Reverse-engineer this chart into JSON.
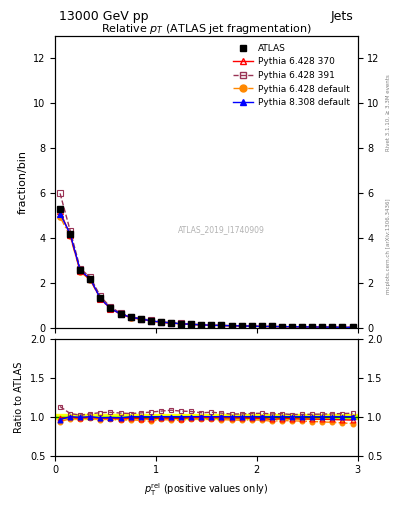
{
  "title_top": "13000 GeV pp",
  "title_top_right": "Jets",
  "plot_title": "Relative $p_{T}$ (ATLAS jet fragmentation)",
  "ylabel_main": "fraction/bin",
  "ylabel_ratio": "Ratio to ATLAS",
  "xlabel": "$p_{\\mathrm{T}}^{\\mathrm{rel}}$ (positive values only)",
  "right_label": "Rivet 3.1.10, ≥ 3.3M events",
  "right_label2": "mcplots.cern.ch [arXiv:1306.3436]",
  "watermark": "ATLAS_2019_I1740909",
  "ylim_main": [
    0,
    13
  ],
  "ylim_ratio": [
    0.5,
    2.0
  ],
  "xlim": [
    0,
    3.0
  ],
  "x_ticks": [
    0,
    1,
    2,
    3
  ],
  "x_data": [
    0.05,
    0.15,
    0.25,
    0.35,
    0.45,
    0.55,
    0.65,
    0.75,
    0.85,
    0.95,
    1.05,
    1.15,
    1.25,
    1.35,
    1.45,
    1.55,
    1.65,
    1.75,
    1.85,
    1.95,
    2.05,
    2.15,
    2.25,
    2.35,
    2.45,
    2.55,
    2.65,
    2.75,
    2.85,
    2.95
  ],
  "atlas_y": [
    5.3,
    4.2,
    2.6,
    2.2,
    1.35,
    0.9,
    0.65,
    0.5,
    0.42,
    0.34,
    0.28,
    0.24,
    0.21,
    0.18,
    0.16,
    0.14,
    0.13,
    0.12,
    0.11,
    0.1,
    0.09,
    0.085,
    0.08,
    0.075,
    0.07,
    0.065,
    0.06,
    0.055,
    0.05,
    0.045
  ],
  "atlas_yerr": [
    0.1,
    0.08,
    0.07,
    0.05,
    0.03,
    0.02,
    0.015,
    0.012,
    0.01,
    0.009,
    0.008,
    0.007,
    0.006,
    0.005,
    0.005,
    0.004,
    0.004,
    0.003,
    0.003,
    0.003,
    0.003,
    0.002,
    0.002,
    0.002,
    0.002,
    0.002,
    0.002,
    0.002,
    0.002,
    0.002
  ],
  "py6_370_y": [
    5.2,
    4.15,
    2.55,
    2.18,
    1.32,
    0.88,
    0.63,
    0.49,
    0.41,
    0.33,
    0.275,
    0.235,
    0.205,
    0.178,
    0.158,
    0.138,
    0.128,
    0.118,
    0.108,
    0.098,
    0.088,
    0.082,
    0.078,
    0.073,
    0.068,
    0.063,
    0.058,
    0.053,
    0.048,
    0.043
  ],
  "py6_391_y": [
    6.0,
    4.35,
    2.65,
    2.28,
    1.42,
    0.95,
    0.68,
    0.52,
    0.44,
    0.36,
    0.3,
    0.26,
    0.225,
    0.192,
    0.168,
    0.148,
    0.136,
    0.124,
    0.114,
    0.104,
    0.094,
    0.088,
    0.083,
    0.077,
    0.072,
    0.067,
    0.062,
    0.057,
    0.052,
    0.047
  ],
  "py6_def_y": [
    4.95,
    4.1,
    2.52,
    2.15,
    1.3,
    0.87,
    0.62,
    0.48,
    0.4,
    0.32,
    0.27,
    0.23,
    0.2,
    0.175,
    0.155,
    0.135,
    0.125,
    0.115,
    0.105,
    0.096,
    0.086,
    0.08,
    0.076,
    0.071,
    0.066,
    0.061,
    0.056,
    0.051,
    0.046,
    0.041
  ],
  "py8_def_y": [
    5.1,
    4.2,
    2.58,
    2.2,
    1.33,
    0.89,
    0.64,
    0.5,
    0.42,
    0.34,
    0.28,
    0.24,
    0.21,
    0.18,
    0.16,
    0.14,
    0.13,
    0.12,
    0.11,
    0.1,
    0.09,
    0.085,
    0.08,
    0.075,
    0.07,
    0.065,
    0.06,
    0.055,
    0.05,
    0.045
  ],
  "py6_370_ratio": [
    0.98,
    0.99,
    0.98,
    0.99,
    0.98,
    0.98,
    0.97,
    0.98,
    0.976,
    0.97,
    0.982,
    0.979,
    0.976,
    0.989,
    0.988,
    0.986,
    0.985,
    0.983,
    0.982,
    0.98,
    0.978,
    0.965,
    0.975,
    0.973,
    0.971,
    0.969,
    0.967,
    0.964,
    0.96,
    0.956
  ],
  "py6_391_ratio": [
    1.13,
    1.04,
    1.02,
    1.036,
    1.052,
    1.056,
    1.046,
    1.04,
    1.048,
    1.059,
    1.071,
    1.083,
    1.071,
    1.067,
    1.05,
    1.057,
    1.046,
    1.033,
    1.036,
    1.04,
    1.044,
    1.035,
    1.038,
    1.027,
    1.029,
    1.031,
    1.033,
    1.036,
    1.04,
    1.044
  ],
  "py6_def_ratio": [
    0.934,
    0.976,
    0.969,
    0.977,
    0.963,
    0.967,
    0.954,
    0.96,
    0.952,
    0.941,
    0.964,
    0.958,
    0.952,
    0.972,
    0.969,
    0.964,
    0.962,
    0.958,
    0.955,
    0.96,
    0.956,
    0.941,
    0.95,
    0.947,
    0.943,
    0.938,
    0.933,
    0.927,
    0.92,
    0.911
  ],
  "py8_def_ratio": [
    0.962,
    1.0,
    0.992,
    1.0,
    0.985,
    0.989,
    0.985,
    1.0,
    1.0,
    1.0,
    1.0,
    1.0,
    1.0,
    1.0,
    1.0,
    1.0,
    1.0,
    1.0,
    1.0,
    1.0,
    1.0,
    1.0,
    1.0,
    1.0,
    1.0,
    1.0,
    1.0,
    1.0,
    1.0,
    1.0
  ],
  "band_y1": 0.97,
  "band_y2": 1.03,
  "band_color_inner": "#aaff00",
  "band_color_outer": "#ffff00",
  "color_atlas": "#000000",
  "color_py6_370": "#ff0000",
  "color_py6_391": "#993355",
  "color_py6_def": "#ff8800",
  "color_py8_def": "#0000ff"
}
